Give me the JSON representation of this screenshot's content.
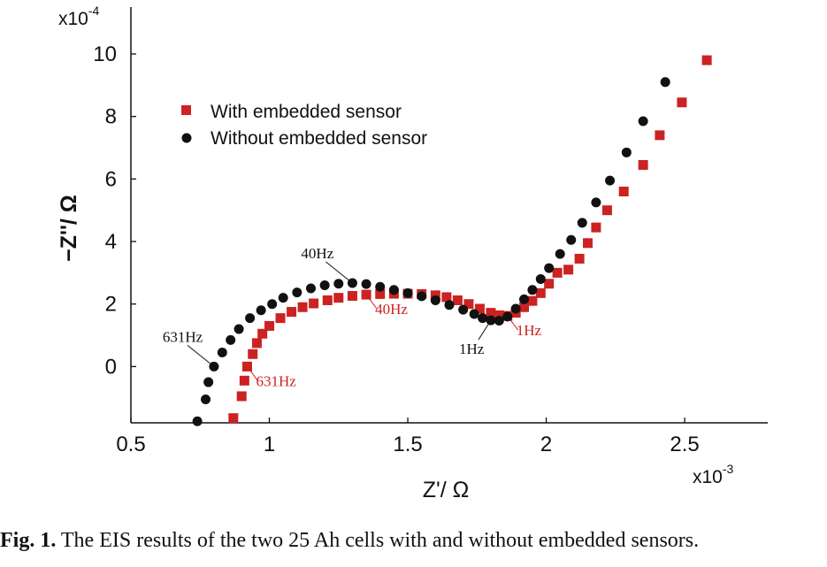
{
  "chart_data": {
    "type": "scatter",
    "xlabel": "Z'/ Ω",
    "ylabel": "−Z''/ Ω",
    "x_multiplier": "x10",
    "x_exponent": "-3",
    "y_multiplier": "x10",
    "y_exponent": "-4",
    "xlim": [
      0.5,
      2.8
    ],
    "ylim": [
      -1.8,
      11.5
    ],
    "x_ticks": [
      0.5,
      1,
      1.5,
      2,
      2.5
    ],
    "x_tick_labels": [
      "0.5",
      "1",
      "1.5",
      "2",
      "2.5"
    ],
    "y_ticks": [
      0,
      2,
      4,
      6,
      8,
      10
    ],
    "y_tick_labels": [
      "0",
      "2",
      "4",
      "6",
      "8",
      "10"
    ],
    "grid": false,
    "legend_position": "top-left",
    "series": [
      {
        "name": "With embedded sensor",
        "marker": "square",
        "color": "#cc2222",
        "points": [
          [
            0.87,
            -1.65
          ],
          [
            0.9,
            -0.95
          ],
          [
            0.91,
            -0.45
          ],
          [
            0.92,
            0.0
          ],
          [
            0.94,
            0.4
          ],
          [
            0.955,
            0.75
          ],
          [
            0.975,
            1.05
          ],
          [
            1.0,
            1.3
          ],
          [
            1.04,
            1.55
          ],
          [
            1.08,
            1.75
          ],
          [
            1.12,
            1.9
          ],
          [
            1.16,
            2.02
          ],
          [
            1.21,
            2.12
          ],
          [
            1.25,
            2.2
          ],
          [
            1.3,
            2.26
          ],
          [
            1.35,
            2.3
          ],
          [
            1.4,
            2.32
          ],
          [
            1.45,
            2.33
          ],
          [
            1.5,
            2.33
          ],
          [
            1.55,
            2.32
          ],
          [
            1.6,
            2.28
          ],
          [
            1.64,
            2.22
          ],
          [
            1.68,
            2.12
          ],
          [
            1.72,
            2.0
          ],
          [
            1.76,
            1.85
          ],
          [
            1.8,
            1.72
          ],
          [
            1.83,
            1.64
          ],
          [
            1.86,
            1.62
          ],
          [
            1.89,
            1.72
          ],
          [
            1.92,
            1.9
          ],
          [
            1.95,
            2.1
          ],
          [
            1.98,
            2.35
          ],
          [
            2.01,
            2.65
          ],
          [
            2.04,
            3.0
          ],
          [
            2.08,
            3.1
          ],
          [
            2.12,
            3.45
          ],
          [
            2.15,
            3.95
          ],
          [
            2.18,
            4.45
          ],
          [
            2.22,
            5.0
          ],
          [
            2.28,
            5.6
          ],
          [
            2.35,
            6.45
          ],
          [
            2.41,
            7.4
          ],
          [
            2.49,
            8.45
          ],
          [
            2.58,
            9.8
          ]
        ]
      },
      {
        "name": "Without embedded sensor",
        "marker": "circle",
        "color": "#111111",
        "points": [
          [
            0.74,
            -1.75
          ],
          [
            0.77,
            -1.05
          ],
          [
            0.78,
            -0.5
          ],
          [
            0.8,
            0.0
          ],
          [
            0.83,
            0.45
          ],
          [
            0.86,
            0.85
          ],
          [
            0.89,
            1.2
          ],
          [
            0.93,
            1.55
          ],
          [
            0.97,
            1.8
          ],
          [
            1.01,
            2.0
          ],
          [
            1.05,
            2.2
          ],
          [
            1.1,
            2.37
          ],
          [
            1.15,
            2.5
          ],
          [
            1.2,
            2.6
          ],
          [
            1.25,
            2.65
          ],
          [
            1.3,
            2.67
          ],
          [
            1.35,
            2.64
          ],
          [
            1.4,
            2.55
          ],
          [
            1.45,
            2.45
          ],
          [
            1.5,
            2.35
          ],
          [
            1.55,
            2.25
          ],
          [
            1.6,
            2.12
          ],
          [
            1.65,
            1.97
          ],
          [
            1.7,
            1.82
          ],
          [
            1.74,
            1.68
          ],
          [
            1.77,
            1.55
          ],
          [
            1.8,
            1.48
          ],
          [
            1.83,
            1.47
          ],
          [
            1.86,
            1.6
          ],
          [
            1.89,
            1.85
          ],
          [
            1.92,
            2.15
          ],
          [
            1.95,
            2.45
          ],
          [
            1.98,
            2.8
          ],
          [
            2.01,
            3.15
          ],
          [
            2.05,
            3.6
          ],
          [
            2.09,
            4.05
          ],
          [
            2.13,
            4.6
          ],
          [
            2.18,
            5.25
          ],
          [
            2.23,
            5.95
          ],
          [
            2.29,
            6.85
          ],
          [
            2.35,
            7.85
          ],
          [
            2.43,
            9.1
          ]
        ]
      }
    ],
    "annotations": [
      {
        "text": "631Hz",
        "color": "#111111",
        "x": 0.8,
        "y": 0.0,
        "side": "upper-left"
      },
      {
        "text": "631Hz",
        "color": "#cc2222",
        "x": 0.92,
        "y": 0.0,
        "side": "lower-right"
      },
      {
        "text": "40Hz",
        "color": "#111111",
        "x": 1.3,
        "y": 2.67,
        "side": "upper-left"
      },
      {
        "text": "40Hz",
        "color": "#cc2222",
        "x": 1.35,
        "y": 2.3,
        "side": "lower-right"
      },
      {
        "text": "1Hz",
        "color": "#111111",
        "x": 1.8,
        "y": 1.48,
        "side": "lower-left"
      },
      {
        "text": "1Hz",
        "color": "#cc2222",
        "x": 1.86,
        "y": 1.62,
        "side": "lower-right"
      }
    ]
  },
  "caption": {
    "label": "Fig. 1.",
    "text": " The EIS results of the two 25 Ah cells with and without embedded sensors."
  }
}
